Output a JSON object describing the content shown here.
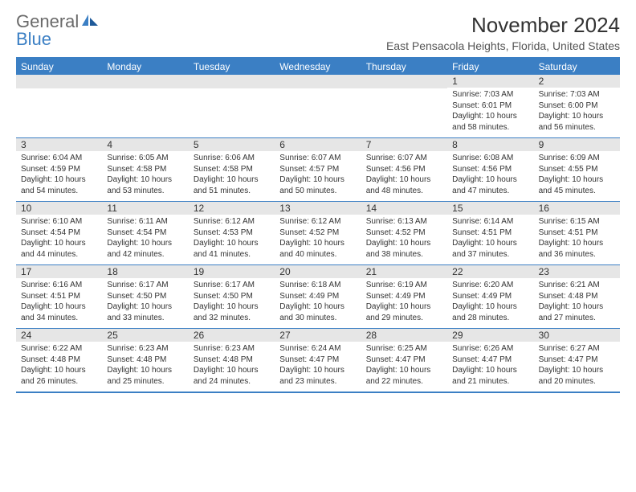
{
  "logo": {
    "word1": "General",
    "word2": "Blue"
  },
  "title": "November 2024",
  "location": "East Pensacola Heights, Florida, United States",
  "header_bg": "#3b7fc4",
  "border_color": "#3b7fc4",
  "daynum_bg": "#e6e6e6",
  "text_color": "#333333",
  "logo_gray": "#6a6a6a",
  "weekdays": [
    "Sunday",
    "Monday",
    "Tuesday",
    "Wednesday",
    "Thursday",
    "Friday",
    "Saturday"
  ],
  "weeks": [
    [
      {
        "empty": true
      },
      {
        "empty": true
      },
      {
        "empty": true
      },
      {
        "empty": true
      },
      {
        "empty": true
      },
      {
        "day": "1",
        "sunrise": "Sunrise: 7:03 AM",
        "sunset": "Sunset: 6:01 PM",
        "daylight": "Daylight: 10 hours and 58 minutes."
      },
      {
        "day": "2",
        "sunrise": "Sunrise: 7:03 AM",
        "sunset": "Sunset: 6:00 PM",
        "daylight": "Daylight: 10 hours and 56 minutes."
      }
    ],
    [
      {
        "day": "3",
        "sunrise": "Sunrise: 6:04 AM",
        "sunset": "Sunset: 4:59 PM",
        "daylight": "Daylight: 10 hours and 54 minutes."
      },
      {
        "day": "4",
        "sunrise": "Sunrise: 6:05 AM",
        "sunset": "Sunset: 4:58 PM",
        "daylight": "Daylight: 10 hours and 53 minutes."
      },
      {
        "day": "5",
        "sunrise": "Sunrise: 6:06 AM",
        "sunset": "Sunset: 4:58 PM",
        "daylight": "Daylight: 10 hours and 51 minutes."
      },
      {
        "day": "6",
        "sunrise": "Sunrise: 6:07 AM",
        "sunset": "Sunset: 4:57 PM",
        "daylight": "Daylight: 10 hours and 50 minutes."
      },
      {
        "day": "7",
        "sunrise": "Sunrise: 6:07 AM",
        "sunset": "Sunset: 4:56 PM",
        "daylight": "Daylight: 10 hours and 48 minutes."
      },
      {
        "day": "8",
        "sunrise": "Sunrise: 6:08 AM",
        "sunset": "Sunset: 4:56 PM",
        "daylight": "Daylight: 10 hours and 47 minutes."
      },
      {
        "day": "9",
        "sunrise": "Sunrise: 6:09 AM",
        "sunset": "Sunset: 4:55 PM",
        "daylight": "Daylight: 10 hours and 45 minutes."
      }
    ],
    [
      {
        "day": "10",
        "sunrise": "Sunrise: 6:10 AM",
        "sunset": "Sunset: 4:54 PM",
        "daylight": "Daylight: 10 hours and 44 minutes."
      },
      {
        "day": "11",
        "sunrise": "Sunrise: 6:11 AM",
        "sunset": "Sunset: 4:54 PM",
        "daylight": "Daylight: 10 hours and 42 minutes."
      },
      {
        "day": "12",
        "sunrise": "Sunrise: 6:12 AM",
        "sunset": "Sunset: 4:53 PM",
        "daylight": "Daylight: 10 hours and 41 minutes."
      },
      {
        "day": "13",
        "sunrise": "Sunrise: 6:12 AM",
        "sunset": "Sunset: 4:52 PM",
        "daylight": "Daylight: 10 hours and 40 minutes."
      },
      {
        "day": "14",
        "sunrise": "Sunrise: 6:13 AM",
        "sunset": "Sunset: 4:52 PM",
        "daylight": "Daylight: 10 hours and 38 minutes."
      },
      {
        "day": "15",
        "sunrise": "Sunrise: 6:14 AM",
        "sunset": "Sunset: 4:51 PM",
        "daylight": "Daylight: 10 hours and 37 minutes."
      },
      {
        "day": "16",
        "sunrise": "Sunrise: 6:15 AM",
        "sunset": "Sunset: 4:51 PM",
        "daylight": "Daylight: 10 hours and 36 minutes."
      }
    ],
    [
      {
        "day": "17",
        "sunrise": "Sunrise: 6:16 AM",
        "sunset": "Sunset: 4:51 PM",
        "daylight": "Daylight: 10 hours and 34 minutes."
      },
      {
        "day": "18",
        "sunrise": "Sunrise: 6:17 AM",
        "sunset": "Sunset: 4:50 PM",
        "daylight": "Daylight: 10 hours and 33 minutes."
      },
      {
        "day": "19",
        "sunrise": "Sunrise: 6:17 AM",
        "sunset": "Sunset: 4:50 PM",
        "daylight": "Daylight: 10 hours and 32 minutes."
      },
      {
        "day": "20",
        "sunrise": "Sunrise: 6:18 AM",
        "sunset": "Sunset: 4:49 PM",
        "daylight": "Daylight: 10 hours and 30 minutes."
      },
      {
        "day": "21",
        "sunrise": "Sunrise: 6:19 AM",
        "sunset": "Sunset: 4:49 PM",
        "daylight": "Daylight: 10 hours and 29 minutes."
      },
      {
        "day": "22",
        "sunrise": "Sunrise: 6:20 AM",
        "sunset": "Sunset: 4:49 PM",
        "daylight": "Daylight: 10 hours and 28 minutes."
      },
      {
        "day": "23",
        "sunrise": "Sunrise: 6:21 AM",
        "sunset": "Sunset: 4:48 PM",
        "daylight": "Daylight: 10 hours and 27 minutes."
      }
    ],
    [
      {
        "day": "24",
        "sunrise": "Sunrise: 6:22 AM",
        "sunset": "Sunset: 4:48 PM",
        "daylight": "Daylight: 10 hours and 26 minutes."
      },
      {
        "day": "25",
        "sunrise": "Sunrise: 6:23 AM",
        "sunset": "Sunset: 4:48 PM",
        "daylight": "Daylight: 10 hours and 25 minutes."
      },
      {
        "day": "26",
        "sunrise": "Sunrise: 6:23 AM",
        "sunset": "Sunset: 4:48 PM",
        "daylight": "Daylight: 10 hours and 24 minutes."
      },
      {
        "day": "27",
        "sunrise": "Sunrise: 6:24 AM",
        "sunset": "Sunset: 4:47 PM",
        "daylight": "Daylight: 10 hours and 23 minutes."
      },
      {
        "day": "28",
        "sunrise": "Sunrise: 6:25 AM",
        "sunset": "Sunset: 4:47 PM",
        "daylight": "Daylight: 10 hours and 22 minutes."
      },
      {
        "day": "29",
        "sunrise": "Sunrise: 6:26 AM",
        "sunset": "Sunset: 4:47 PM",
        "daylight": "Daylight: 10 hours and 21 minutes."
      },
      {
        "day": "30",
        "sunrise": "Sunrise: 6:27 AM",
        "sunset": "Sunset: 4:47 PM",
        "daylight": "Daylight: 10 hours and 20 minutes."
      }
    ]
  ]
}
